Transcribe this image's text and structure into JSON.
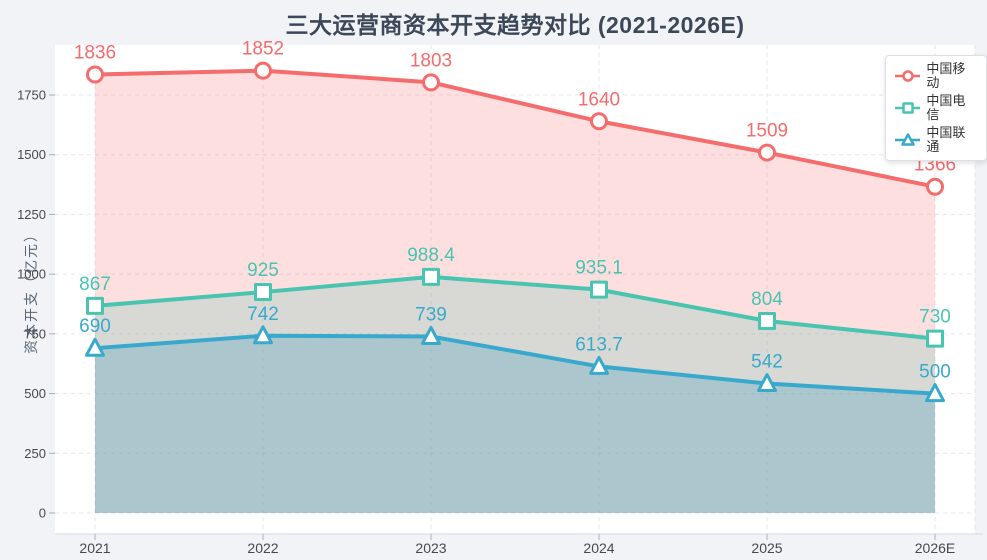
{
  "title": "三大运营商资本开支趋势对比 (2021-2026E)",
  "legend": {
    "position": "top-right",
    "items": [
      "中国移动",
      "中国电信",
      "中国联通"
    ]
  },
  "chart_data": {
    "type": "line",
    "title": "三大运营商资本开支趋势对比 (2021-2026E)",
    "categories": [
      "2021",
      "2022",
      "2023",
      "2024",
      "2025",
      "2026E"
    ],
    "series": [
      {
        "name": "中国移动",
        "marker": "circle",
        "color": "#f56c6c",
        "area": "rgba(245,108,108,0.22)",
        "values": [
          1836,
          1852,
          1803,
          1640,
          1509,
          1366
        ]
      },
      {
        "name": "中国电信",
        "marker": "square",
        "color": "#48c4b0",
        "area": "rgba(72,196,176,0.20)",
        "values": [
          867,
          925,
          988.4,
          935.1,
          804,
          730
        ]
      },
      {
        "name": "中国联通",
        "marker": "triangle",
        "color": "#38a9cc",
        "area": "rgba(56,150,190,0.28)",
        "values": [
          690,
          742,
          739,
          613.7,
          542,
          500
        ]
      }
    ],
    "xlabel": "",
    "ylabel": "资本开支（亿元）",
    "yticks": [
      0,
      250,
      500,
      750,
      1000,
      1250,
      1500,
      1750
    ],
    "ylim": [
      0,
      1960
    ],
    "grid": true,
    "grid_style": "dashed",
    "legend_position": "top-right"
  },
  "colors": {
    "page_background": "#f1f3f6",
    "plot_background": "#ffffff",
    "grid_line": "#e3e8ef",
    "axis_line": "#d4d9e1",
    "tick_mark": "#a8b0ba",
    "tick_text": "#45494f",
    "title_text": "#3c4858",
    "axis_name_text": "#5a6673",
    "legend_text": "#333333"
  }
}
